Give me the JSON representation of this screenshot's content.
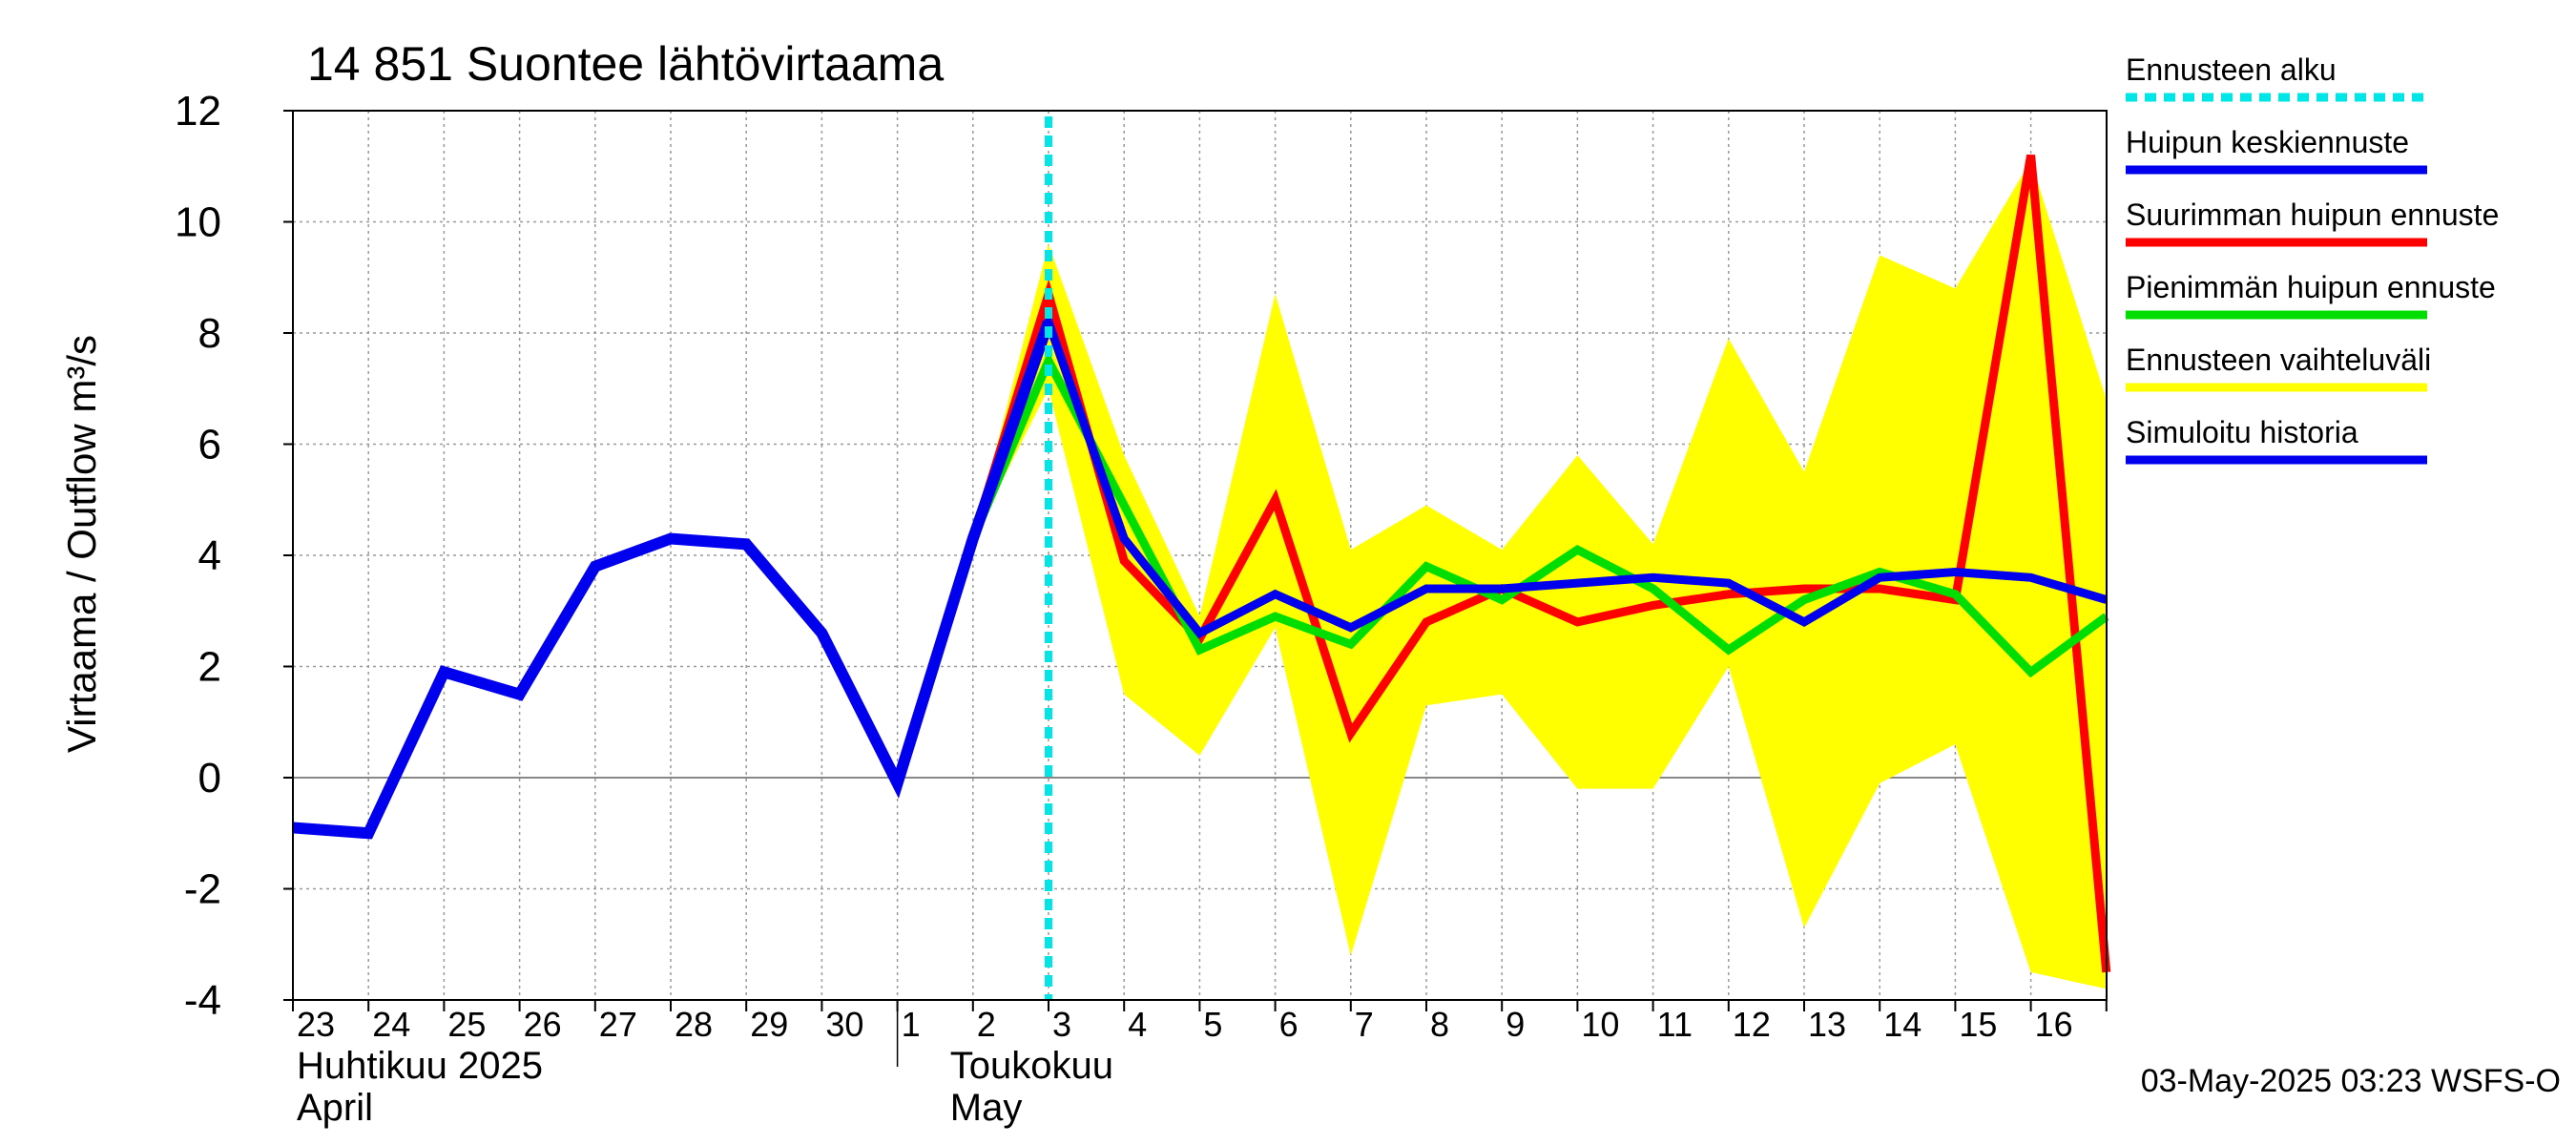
{
  "chart_data": {
    "type": "line",
    "title": "14 851 Suontee lähtövirtaama",
    "ylabel": "Virtaama / Outflow    m³/s",
    "ylim": [
      -4,
      12
    ],
    "yticks": [
      -4,
      -2,
      0,
      2,
      4,
      6,
      8,
      10,
      12
    ],
    "x_tick_labels": [
      "23",
      "24",
      "25",
      "26",
      "27",
      "28",
      "29",
      "30",
      "1",
      "2",
      "3",
      "4",
      "5",
      "6",
      "7",
      "8",
      "9",
      "10",
      "11",
      "12",
      "13",
      "14",
      "15",
      "16"
    ],
    "month_labels": [
      {
        "line1": "Huhtikuu  2025",
        "line2": "April"
      },
      {
        "line1": "Toukokuu",
        "line2": "May"
      }
    ],
    "forecast_start_day": 10,
    "grid": true,
    "legend_position": "right",
    "footer": "03-May-2025 03:23 WSFS-O",
    "legend": [
      {
        "label": "Ennusteen alku",
        "color": "#00e5e5",
        "style": "dashed"
      },
      {
        "label": "Huipun keskiennuste",
        "color": "#0000ee",
        "style": "solid"
      },
      {
        "label": "Suurimman huipun ennuste",
        "color": "#ff0000",
        "style": "solid"
      },
      {
        "label": "Pienimmän huipun ennuste",
        "color": "#00dd00",
        "style": "solid"
      },
      {
        "label": "Ennusteen vaihteluväli",
        "color": "#ffff00",
        "style": "solid"
      },
      {
        "label": "Simuloitu historia",
        "color": "#0000ee",
        "style": "solid"
      }
    ],
    "range_band": {
      "name": "Ennusteen vaihteluväli",
      "x": [
        9,
        10,
        11,
        12,
        13,
        14,
        15,
        16,
        17,
        18,
        19,
        20,
        21,
        22,
        23,
        24
      ],
      "upper": [
        4.3,
        9.6,
        5.8,
        2.9,
        8.7,
        4.1,
        4.9,
        4.1,
        5.8,
        4.2,
        7.9,
        5.5,
        9.4,
        8.8,
        11.1,
        6.8
      ],
      "lower": [
        4.3,
        7.0,
        1.5,
        0.4,
        2.7,
        -3.2,
        1.3,
        1.5,
        -0.2,
        -0.2,
        2.0,
        -2.7,
        -0.1,
        0.6,
        -3.5,
        -3.8
      ]
    },
    "series": [
      {
        "name": "Suurimman huipun ennuste",
        "color": "#ff0000",
        "x": [
          9,
          10,
          11,
          12,
          13,
          14,
          15,
          16,
          17,
          18,
          19,
          20,
          21,
          22,
          23,
          24
        ],
        "values": [
          4.3,
          8.7,
          3.9,
          2.5,
          5.0,
          0.8,
          2.8,
          3.4,
          2.8,
          3.1,
          3.3,
          3.4,
          3.4,
          3.2,
          11.2,
          -3.5
        ]
      },
      {
        "name": "Pienimmän huipun ennuste",
        "color": "#00dd00",
        "x": [
          9,
          10,
          11,
          12,
          13,
          14,
          15,
          16,
          17,
          18,
          19,
          20,
          21,
          22,
          23,
          24
        ],
        "values": [
          4.3,
          7.5,
          4.9,
          2.3,
          2.9,
          2.4,
          3.8,
          3.2,
          4.1,
          3.4,
          2.3,
          3.2,
          3.7,
          3.3,
          1.9,
          2.9
        ]
      },
      {
        "name": "Huipun keskiennuste",
        "color": "#0000ee",
        "x": [
          9,
          10,
          11,
          12,
          13,
          14,
          15,
          16,
          17,
          18,
          19,
          20,
          21,
          22,
          23,
          24
        ],
        "values": [
          4.3,
          8.2,
          4.3,
          2.6,
          3.3,
          2.7,
          3.4,
          3.4,
          3.5,
          3.6,
          3.5,
          2.8,
          3.6,
          3.7,
          3.6,
          3.2
        ]
      },
      {
        "name": "Simuloitu historia",
        "color": "#0000ee",
        "x": [
          0,
          1,
          2,
          3,
          4,
          5,
          6,
          7,
          8,
          9,
          10
        ],
        "values": [
          -0.9,
          -1.0,
          1.9,
          1.5,
          3.8,
          4.3,
          4.2,
          2.6,
          -0.1,
          4.3,
          8.2
        ]
      }
    ]
  }
}
